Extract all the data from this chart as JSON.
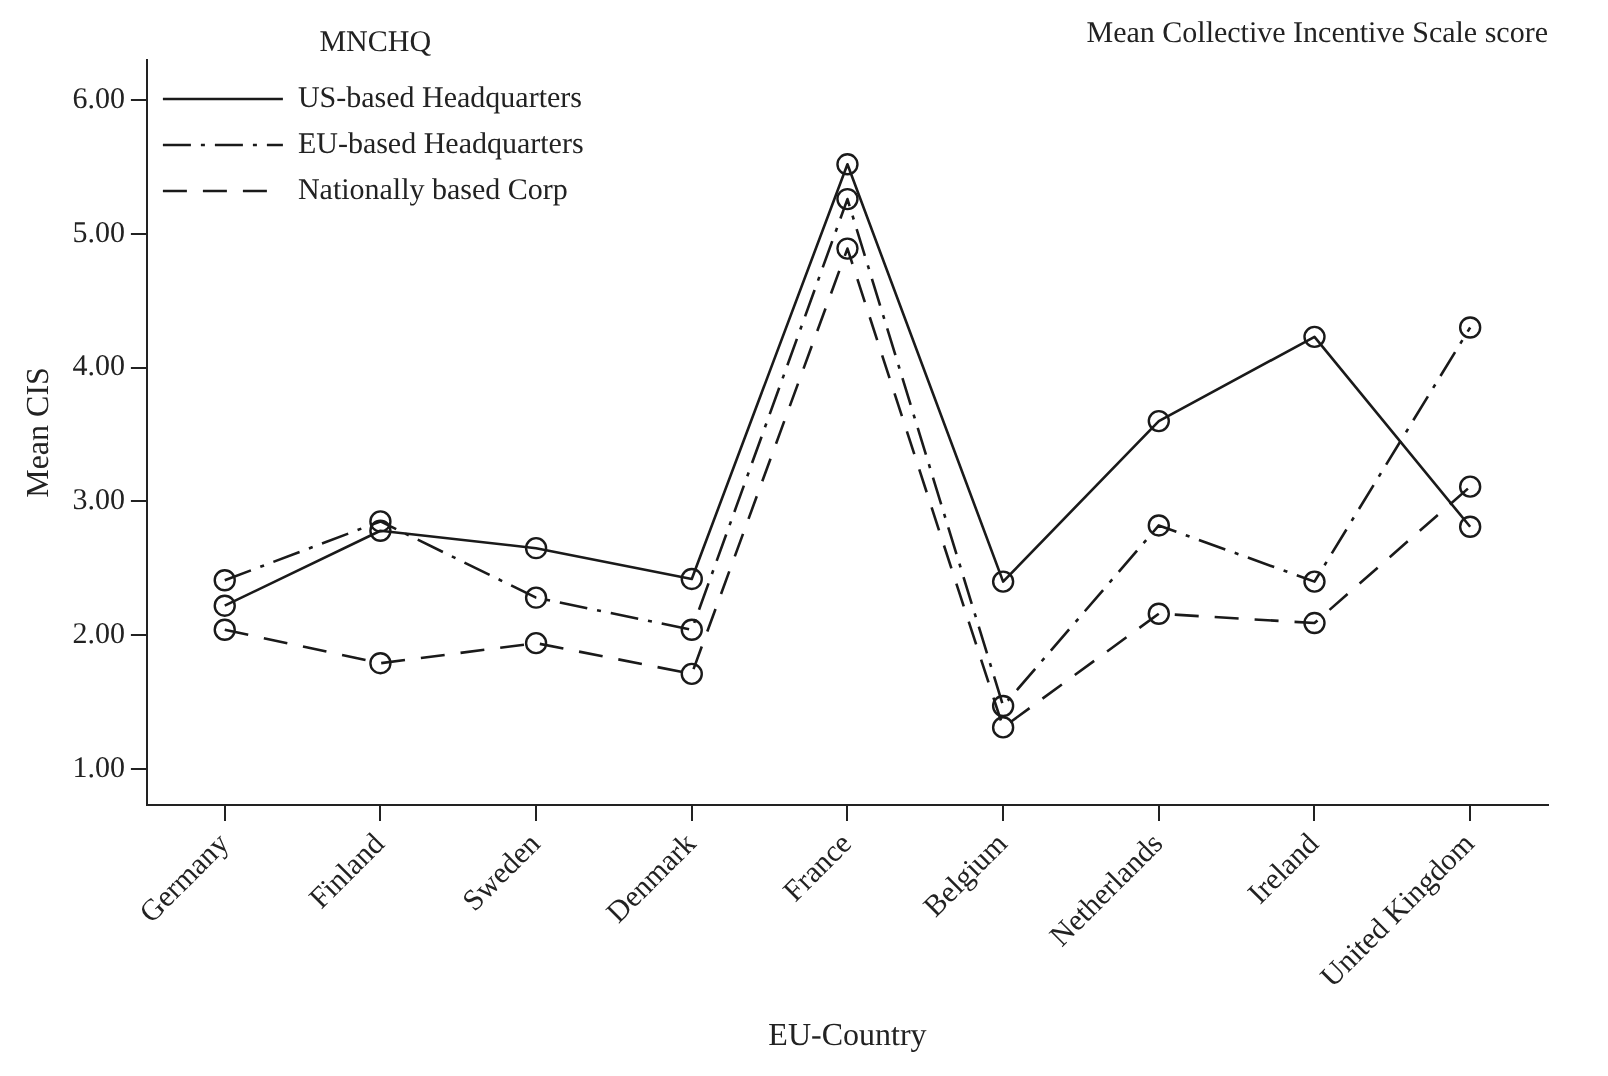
{
  "chart_data": {
    "type": "line",
    "title": "Mean Collective Incentive Scale score",
    "xlabel": "EU-Country",
    "ylabel": "Mean CIS",
    "legend_title": "MNCHQ",
    "categories": [
      "Germany",
      "Finland",
      "Sweden",
      "Denmark",
      "France",
      "Belgium",
      "Netherlands",
      "Ireland",
      "United Kingdom"
    ],
    "series": [
      {
        "name": "US-based Headquarters",
        "color": "#1a1a1a",
        "line_style": "solid",
        "values": [
          2.22,
          2.78,
          2.65,
          2.42,
          5.52,
          2.4,
          3.6,
          4.23,
          2.81
        ]
      },
      {
        "name": "EU-based Headquarters",
        "color": "#1a1a1a",
        "line_style": "dashdot",
        "values": [
          2.41,
          2.85,
          2.28,
          2.04,
          5.26,
          1.47,
          2.82,
          2.4,
          4.3
        ]
      },
      {
        "name": "Nationally based Corp",
        "color": "#1a1a1a",
        "line_style": "dashed",
        "values": [
          2.04,
          1.79,
          1.94,
          1.71,
          4.89,
          1.31,
          2.16,
          2.09,
          3.11
        ]
      }
    ],
    "ylim": [
      0.73,
      6.3
    ],
    "yticks": [
      {
        "value": 1,
        "label": "1.00"
      },
      {
        "value": 2,
        "label": "2.00"
      },
      {
        "value": 3,
        "label": "3.00"
      },
      {
        "value": 4,
        "label": "4.00"
      },
      {
        "value": 5,
        "label": "5.00"
      },
      {
        "value": 6,
        "label": "6.00"
      }
    ],
    "grid": false,
    "legend": "top left",
    "marker": "circle"
  }
}
